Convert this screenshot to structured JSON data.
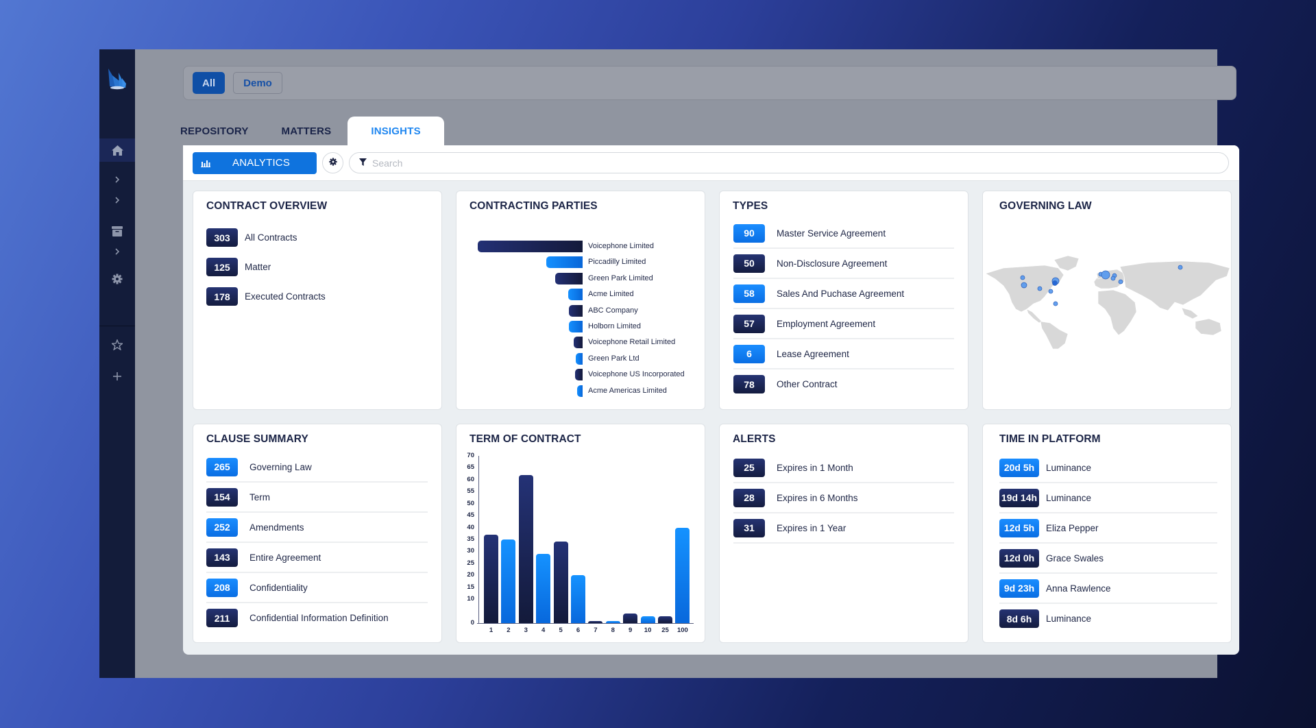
{
  "filter_bar": {
    "chips": [
      {
        "label": "All",
        "active": true
      },
      {
        "label": "Demo",
        "active": false
      }
    ]
  },
  "tabs": [
    {
      "label": "REPOSITORY",
      "active": false
    },
    {
      "label": "MATTERS",
      "active": false
    },
    {
      "label": "INSIGHTS",
      "active": true
    }
  ],
  "toolbar": {
    "analytics_label": "ANALYTICS",
    "search_placeholder": "Search",
    "search_value": ""
  },
  "sidebar": {
    "items": [
      {
        "icon": "home-icon",
        "active": true
      },
      {
        "icon": "chevron-right-icon"
      },
      {
        "icon": "chevron-right-icon"
      },
      {
        "icon": "archive-icon"
      },
      {
        "icon": "chevron-right-icon"
      },
      {
        "icon": "gear-icon"
      },
      {
        "icon": "star-icon"
      },
      {
        "icon": "plus-icon"
      }
    ]
  },
  "colors": {
    "accent_blue": "#0f73de",
    "badge_dark": "#1b2657",
    "badge_blue": "#1287f5",
    "sidebar_bg": "#131c3a",
    "insights_tab": "#1e86f0"
  },
  "contract_overview": {
    "title": "CONTRACT OVERVIEW",
    "items": [
      {
        "count": "303",
        "label": "All Contracts",
        "style": "dark"
      },
      {
        "count": "125",
        "label": "Matter",
        "style": "dark"
      },
      {
        "count": "178",
        "label": "Executed Contracts",
        "style": "dark"
      }
    ]
  },
  "contracting_parties": {
    "title": "CONTRACTING PARTIES"
  },
  "types": {
    "title": "TYPES",
    "items": [
      {
        "count": "90",
        "label": "Master Service Agreement",
        "style": "blue"
      },
      {
        "count": "50",
        "label": "Non-Disclosure Agreement",
        "style": "dark"
      },
      {
        "count": "58",
        "label": "Sales And Puchase Agreement",
        "style": "blue"
      },
      {
        "count": "57",
        "label": "Employment Agreement",
        "style": "dark"
      },
      {
        "count": "6",
        "label": "Lease Agreement",
        "style": "blue"
      },
      {
        "count": "78",
        "label": "Other Contract",
        "style": "dark"
      }
    ]
  },
  "governing_law": {
    "title": "GOVERNING LAW"
  },
  "clause_summary": {
    "title": "CLAUSE SUMMARY",
    "items": [
      {
        "count": "265",
        "label": "Governing Law",
        "style": "blue"
      },
      {
        "count": "154",
        "label": "Term",
        "style": "dark"
      },
      {
        "count": "252",
        "label": "Amendments",
        "style": "blue"
      },
      {
        "count": "143",
        "label": "Entire Agreement",
        "style": "dark"
      },
      {
        "count": "208",
        "label": "Confidentiality",
        "style": "blue"
      },
      {
        "count": "211",
        "label": "Confidential Information Definition",
        "style": "dark"
      }
    ]
  },
  "term_of_contract": {
    "title": "TERM OF CONTRACT"
  },
  "alerts": {
    "title": "ALERTS",
    "items": [
      {
        "count": "25",
        "label": "Expires in 1 Month",
        "style": "dark"
      },
      {
        "count": "28",
        "label": "Expires in 6 Months",
        "style": "dark"
      },
      {
        "count": "31",
        "label": "Expires in 1 Year",
        "style": "dark"
      }
    ]
  },
  "time_in_platform": {
    "title": "TIME IN PLATFORM",
    "items": [
      {
        "count": "20d 5h",
        "label": "Luminance",
        "style": "blue"
      },
      {
        "count": "19d 14h",
        "label": "Luminance",
        "style": "dark"
      },
      {
        "count": "12d 5h",
        "label": "Eliza Pepper",
        "style": "blue"
      },
      {
        "count": "12d 0h",
        "label": "Grace Swales",
        "style": "dark"
      },
      {
        "count": "9d 23h",
        "label": "Anna Rawlence",
        "style": "blue"
      },
      {
        "count": "8d 6h",
        "label": "Luminance",
        "style": "dark"
      }
    ]
  },
  "chart_data": [
    {
      "type": "bar",
      "orientation": "horizontal",
      "title": "CONTRACTING PARTIES",
      "categories": [
        "Voicephone Limited",
        "Piccadilly Limited",
        "Green Park Limited",
        "Acme Limited",
        "ABC Company",
        "Holborn Limited",
        "Voicephone Retail Limited",
        "Green Park Ltd",
        "Voicephone US Incorporated",
        "Acme Americas Limited"
      ],
      "values": [
        153,
        53,
        40,
        21,
        20,
        20,
        13,
        10,
        11,
        8
      ],
      "styles": [
        "dark",
        "blue",
        "dark",
        "blue",
        "dark",
        "blue",
        "dark",
        "blue",
        "dark",
        "blue"
      ],
      "xlabel": "",
      "ylabel": "",
      "grid": false,
      "legend": "none"
    },
    {
      "type": "bar",
      "title": "TERM OF CONTRACT",
      "categories": [
        "1",
        "2",
        "3",
        "4",
        "5",
        "6",
        "7",
        "8",
        "9",
        "10",
        "25",
        "100"
      ],
      "values": [
        37,
        35,
        62,
        29,
        34,
        20,
        1,
        1,
        4,
        3,
        3,
        40
      ],
      "styles": [
        "dark",
        "blue",
        "dark",
        "blue",
        "dark",
        "blue",
        "dark",
        "blue",
        "dark",
        "blue",
        "dark",
        "blue"
      ],
      "yticks": [
        "0",
        "10",
        "15",
        "20",
        "25",
        "30",
        "35",
        "40",
        "45",
        "50",
        "55",
        "60",
        "65",
        "70"
      ],
      "ylim": [
        0,
        70
      ],
      "xlabel": "",
      "ylabel": "",
      "grid": false,
      "legend": "none"
    },
    {
      "type": "scatter",
      "title": "GOVERNING LAW",
      "description": "World map bubble chart",
      "points": [
        {
          "region": "US West (north)",
          "size": "small"
        },
        {
          "region": "US West (south)",
          "size": "medium"
        },
        {
          "region": "US South",
          "size": "small"
        },
        {
          "region": "US Southeast",
          "size": "small"
        },
        {
          "region": "US Northeast",
          "size": "large"
        },
        {
          "region": "Colombia",
          "size": "small"
        },
        {
          "region": "Ireland",
          "size": "small"
        },
        {
          "region": "United Kingdom",
          "size": "large"
        },
        {
          "region": "Germany",
          "size": "small"
        },
        {
          "region": "Switzerland",
          "size": "small"
        },
        {
          "region": "Italy",
          "size": "small"
        },
        {
          "region": "Russia",
          "size": "small"
        }
      ]
    }
  ]
}
